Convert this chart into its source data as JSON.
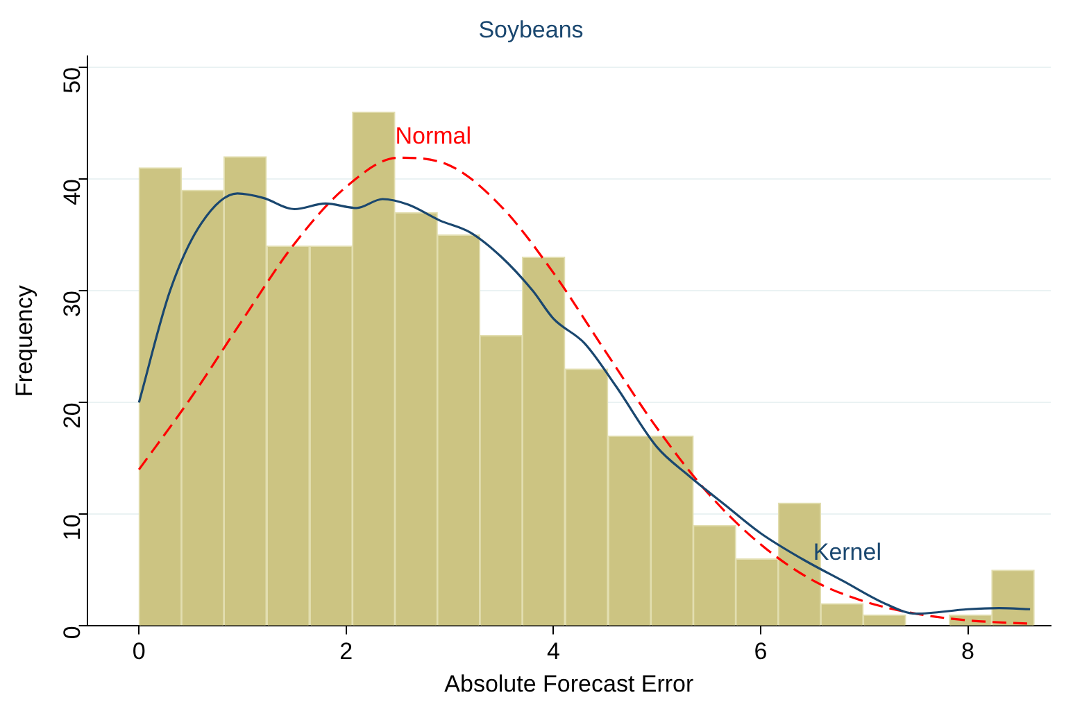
{
  "chart_data": {
    "type": "histogram",
    "title": "Soybeans",
    "xlabel": "Absolute Forecast Error",
    "ylabel": "Frequency",
    "bins": [
      0,
      0.41,
      0.82,
      1.23,
      1.65,
      2.06,
      2.47,
      2.88,
      3.29,
      3.7,
      4.11,
      4.53,
      4.94,
      5.35,
      5.76,
      6.17,
      6.58,
      6.99,
      7.4,
      7.82,
      8.23,
      8.64
    ],
    "values": [
      41,
      39,
      42,
      34,
      34,
      46,
      37,
      35,
      26,
      33,
      23,
      17,
      17,
      9,
      6,
      11,
      2,
      1,
      0,
      1,
      5
    ],
    "color": "#ccc482",
    "series": [
      {
        "name": "Kernel",
        "type": "line",
        "color": "#1a476f",
        "line_style": "solid",
        "x": [
          0,
          0.3,
          0.6,
          0.95,
          1.2,
          1.5,
          1.8,
          2.1,
          2.35,
          2.6,
          2.9,
          3.2,
          3.5,
          3.8,
          4.0,
          4.3,
          4.6,
          5.0,
          5.3,
          5.7,
          6.0,
          6.4,
          6.8,
          7.2,
          7.5,
          8.0,
          8.3,
          8.6
        ],
        "values": [
          20,
          30,
          36,
          38.7,
          38.3,
          37.3,
          37.8,
          37.4,
          38.2,
          37.7,
          36.3,
          35.2,
          33,
          30,
          27.5,
          25.3,
          21.5,
          16,
          13.5,
          10.5,
          8.3,
          6,
          4,
          2,
          1.1,
          1.5,
          1.6,
          1.5
        ]
      },
      {
        "name": "Normal",
        "type": "line",
        "color": "#ff0000",
        "line_style": "dashed",
        "x": [
          0,
          0.5,
          1,
          1.5,
          2,
          2.5,
          3,
          3.5,
          4,
          4.5,
          5,
          5.5,
          6,
          6.5,
          7,
          7.5,
          8,
          8.6
        ],
        "values": [
          14,
          20.4,
          27.4,
          34.2,
          39.3,
          41.9,
          41.2,
          37.5,
          31.6,
          24.6,
          17.7,
          11.8,
          7.3,
          4.1,
          2.2,
          1.1,
          0.5,
          0.2
        ]
      }
    ],
    "xlim": [
      -0.5,
      8.8
    ],
    "xticks": [
      0,
      2,
      4,
      6,
      8
    ],
    "ylim": [
      0,
      51
    ],
    "yticks": [
      0,
      10,
      20,
      30,
      40,
      50
    ],
    "grid": "y",
    "legend": false,
    "marker": "none"
  }
}
